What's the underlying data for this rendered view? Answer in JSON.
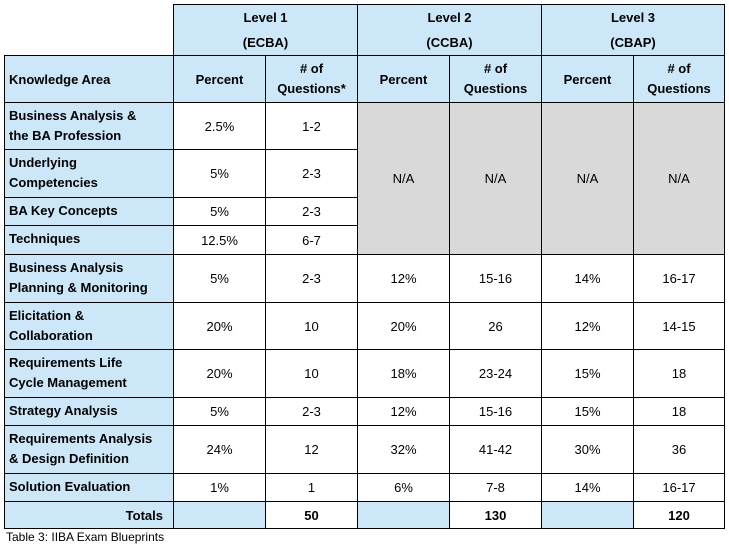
{
  "levels": [
    {
      "name": "Level 1",
      "cert": "(ECBA)"
    },
    {
      "name": "Level 2",
      "cert": "(CCBA)"
    },
    {
      "name": "Level 3",
      "cert": "(CBAP)"
    }
  ],
  "headers": {
    "knowledge_area": "Knowledge Area",
    "percent": "Percent",
    "questions_l1_line1": "# of",
    "questions_l1_line2": "Questions*",
    "questions_line1": "# of",
    "questions_line2": "Questions"
  },
  "rows": [
    {
      "area_line1": "Business Analysis &",
      "area_line2": "the BA Profession",
      "l1_pct": "2.5%",
      "l1_q": "1-2"
    },
    {
      "area_line1": "Underlying",
      "area_line2": "Competencies",
      "l1_pct": "5%",
      "l1_q": "2-3"
    },
    {
      "area_line1": "BA Key Concepts",
      "area_line2": "",
      "l1_pct": "5%",
      "l1_q": "2-3"
    },
    {
      "area_line1": "Techniques",
      "area_line2": "",
      "l1_pct": "12.5%",
      "l1_q": "6-7"
    },
    {
      "area_line1": "Business Analysis",
      "area_line2": "Planning & Monitoring",
      "l1_pct": "5%",
      "l1_q": "2-3",
      "l2_pct": "12%",
      "l2_q": "15-16",
      "l3_pct": "14%",
      "l3_q": "16-17"
    },
    {
      "area_line1": "Elicitation &",
      "area_line2": "Collaboration",
      "l1_pct": "20%",
      "l1_q": "10",
      "l2_pct": "20%",
      "l2_q": "26",
      "l3_pct": "12%",
      "l3_q": "14-15"
    },
    {
      "area_line1": "Requirements Life",
      "area_line2": "Cycle Management",
      "l1_pct": "20%",
      "l1_q": "10",
      "l2_pct": "18%",
      "l2_q": "23-24",
      "l3_pct": "15%",
      "l3_q": "18"
    },
    {
      "area_line1": "Strategy Analysis",
      "area_line2": "",
      "l1_pct": "5%",
      "l1_q": "2-3",
      "l2_pct": "12%",
      "l2_q": "15-16",
      "l3_pct": "15%",
      "l3_q": "18"
    },
    {
      "area_line1": "Requirements Analysis",
      "area_line2": "& Design Definition",
      "l1_pct": "24%",
      "l1_q": "12",
      "l2_pct": "32%",
      "l2_q": "41-42",
      "l3_pct": "30%",
      "l3_q": "36"
    },
    {
      "area_line1": "Solution Evaluation",
      "area_line2": "",
      "l1_pct": "1%",
      "l1_q": "1",
      "l2_pct": "6%",
      "l2_q": "7-8",
      "l3_pct": "14%",
      "l3_q": "16-17"
    }
  ],
  "na_text": "N/A",
  "totals": {
    "label": "Totals",
    "l1": "50",
    "l2": "130",
    "l3": "120"
  },
  "caption": "Table 3: IIBA Exam Blueprints",
  "colors": {
    "header_fill": "#cce8f8",
    "na_fill": "#d9d9d9"
  }
}
